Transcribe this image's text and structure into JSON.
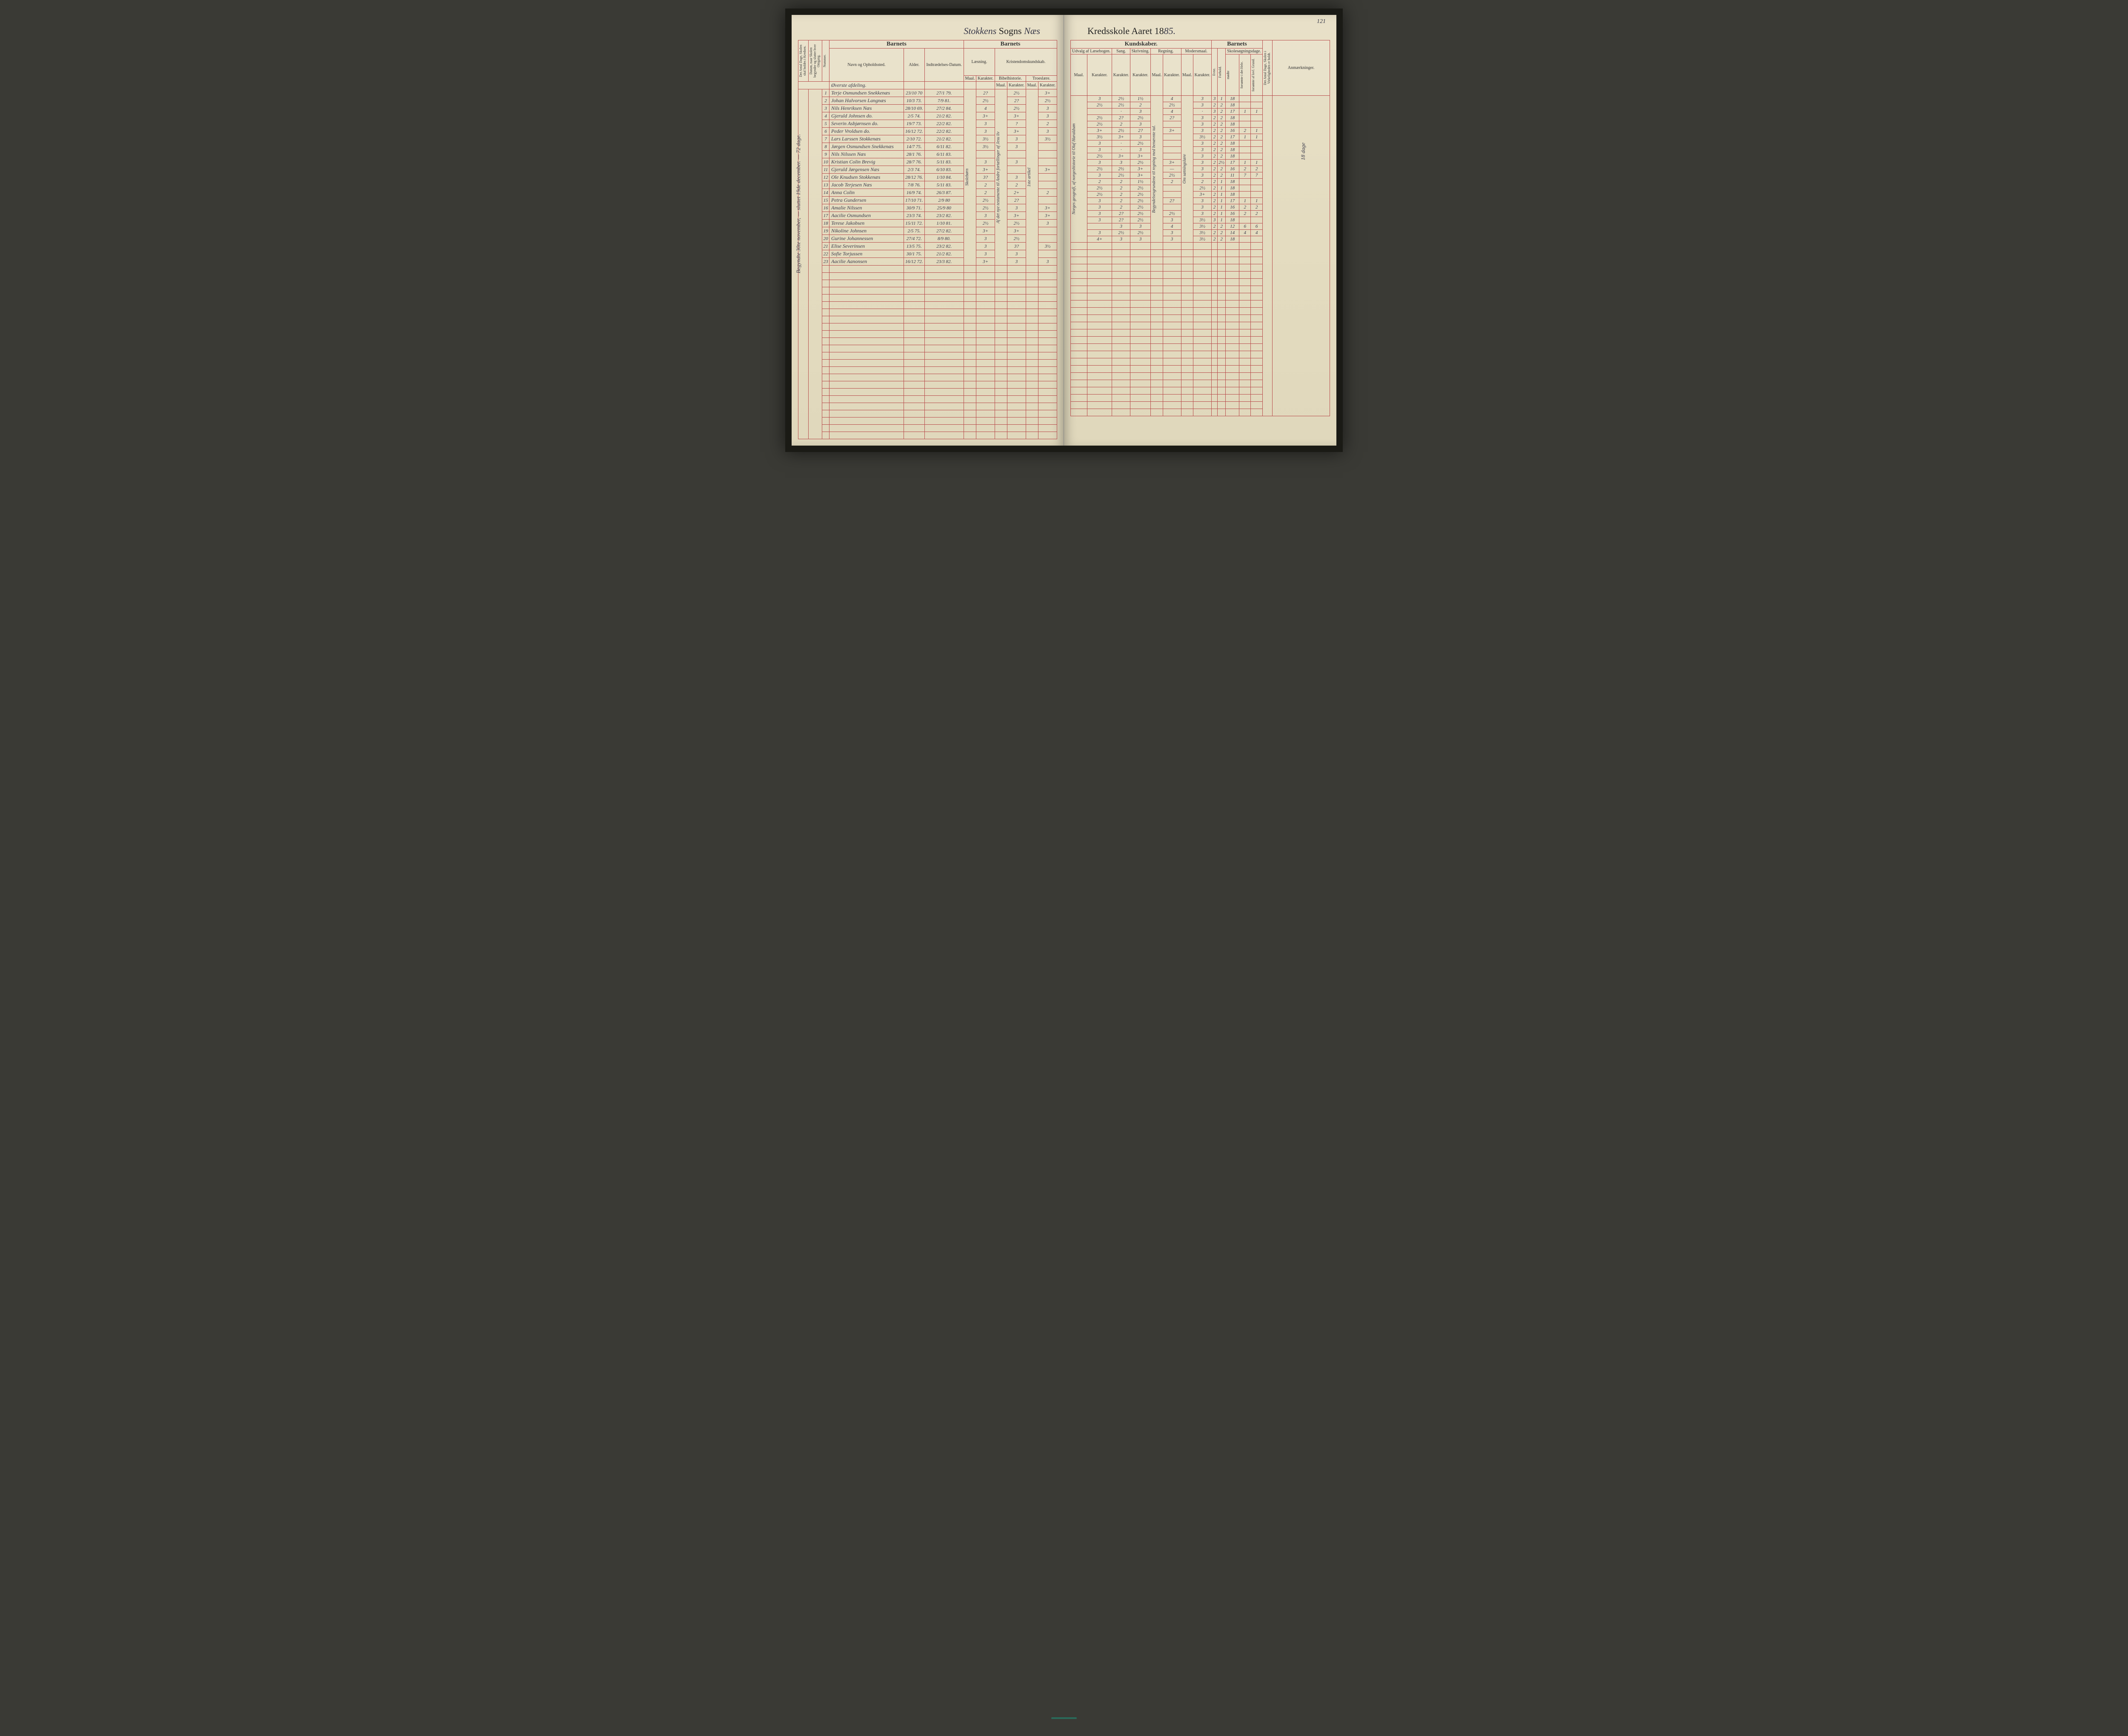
{
  "page_number": "121",
  "title_left_prefix_hand": "Stokkens",
  "title_left_print": "Sogns",
  "title_left_suffix_hand": "Næs",
  "title_right_print": "Kredsskole Aaret 18",
  "title_right_suffix_hand": "85.",
  "margin_note_left": "Begyndte 30te november, — sluttet 19de december. — 72 dage.",
  "margin_note_right": "18 dage",
  "section_heading_hand": "Øverste afdeling.",
  "headers": {
    "col1": "Det Antal Dage, Skolen skal holdes i Kredsen.",
    "col2": "Datum, naar Skolen begynder og slutter hver Omgang.",
    "nummer": "Nummer.",
    "barnets": "Barnets",
    "navn": "Navn og Opholdssted.",
    "alder": "Alder.",
    "indtr": "Indtrædelses-Datum.",
    "laesning": "Læsning.",
    "kristendom": "Kristendomskundskab.",
    "bibel": "Bibelhistorie.",
    "troes": "Troeslære.",
    "maal": "Maal.",
    "karakter": "Karakter.",
    "kundskaber": "Kundskaber.",
    "udvalg": "Udvalg af Læsebogen.",
    "sang": "Sang.",
    "skriv": "Skrivning.",
    "regning": "Regning.",
    "modersmaal": "Modersmaal.",
    "evne": "Evne.",
    "forhold": "Forhold.",
    "skolesog": "Skolesøgningsdage.",
    "modte": "mødte",
    "fors_hele": "forsømte i det Hele.",
    "fors_lovl": "forsømte af lovl. Grund.",
    "virkel": "Det Antal Dage, Skolen i Virkeligheden er holdt.",
    "anm": "Anmærkninger."
  },
  "maal_vertical_left": {
    "laesning": "Skolebørn",
    "bibel": "Af det nye testamente til Andre fortællinger af Jesu liv",
    "troes": "1ste artikel"
  },
  "maal_vertical_right": {
    "udvalg": "Norges geografi, af norgeshistorie til Olaf Haraldsøn",
    "regning": "Begyndelsesgrundene til regning med benævnte tal.",
    "modersmaal": "Om sætningslære"
  },
  "rows": [
    {
      "n": "1",
      "navn": "Terje Osmundsen Snekkenæs",
      "alder": "23/10 70",
      "indtr": "27/1 79.",
      "l_k": "2?",
      "b_k": "2½",
      "t_k": "3+",
      "u_k": "3",
      "sa": "2½",
      "sk": "1½",
      "re_k": "4",
      "mo_k": "3",
      "ev": "3",
      "fo": "1",
      "mo": "18",
      "fh": "",
      "fl": ""
    },
    {
      "n": "2",
      "navn": "Johan Halvorsen Langnæs",
      "alder": "10/3 73.",
      "indtr": "7/9 81.",
      "l_k": "2½",
      "b_k": "2?",
      "t_k": "2½",
      "u_k": "2½",
      "sa": "2½",
      "sk": "2",
      "re_k": "2½",
      "mo_k": "3",
      "ev": "2",
      "fo": "2",
      "mo": "18",
      "fh": "",
      "fl": ""
    },
    {
      "n": "3",
      "navn": "Nils Henriksen Næs",
      "alder": "28/10 69.",
      "indtr": "27/2 84.",
      "l_k": "4",
      "b_k": "2½",
      "t_k": "3",
      "u_k": "",
      "sa": "·",
      "sk": "3",
      "re_k": "4",
      "mo_k": "·",
      "ev": "3",
      "fo": "2",
      "mo": "17",
      "fh": "1",
      "fl": "1"
    },
    {
      "n": "4",
      "navn": "Gjeruld Johnsen do.",
      "alder": "2/5 74.",
      "indtr": "21/2 82.",
      "l_k": "3+",
      "b_k": "3+",
      "t_k": "3",
      "u_k": "2½",
      "sa": "2?",
      "sk": "2½",
      "re_k": "2?",
      "mo_k": "3",
      "ev": "2",
      "fo": "2",
      "mo": "18",
      "fh": "",
      "fl": ""
    },
    {
      "n": "5",
      "navn": "Severin Asbjørnsen do.",
      "alder": "19/7 73.",
      "indtr": "22/2 82.",
      "l_k": "3",
      "b_k": "?",
      "t_k": "2",
      "u_k": "2½",
      "sa": "2",
      "sk": "3",
      "re_k": "",
      "mo_k": "3",
      "ev": "2",
      "fo": "2",
      "mo": "18",
      "fh": "",
      "fl": ""
    },
    {
      "n": "6",
      "navn": "Peder Vroldsen do.",
      "alder": "16/12 72.",
      "indtr": "22/2 82.",
      "l_k": "3",
      "b_k": "3+",
      "t_k": "3",
      "u_k": "3+",
      "sa": "2½",
      "sk": "2?",
      "re_k": "3+",
      "mo_k": "3",
      "ev": "2",
      "fo": "2",
      "mo": "16",
      "fh": "2",
      "fl": "1"
    },
    {
      "n": "7",
      "navn": "Lars Larssen Stokkenæs",
      "alder": "2/10 72.",
      "indtr": "21/2 82.",
      "l_k": "3½",
      "b_k": "3",
      "t_k": "3½",
      "u_k": "3½",
      "sa": "3+",
      "sk": "3",
      "re_k": "",
      "mo_k": "3½",
      "ev": "2",
      "fo": "2",
      "mo": "17",
      "fh": "1",
      "fl": "1"
    },
    {
      "n": "8",
      "navn": "Jørgen Osmundsen Snekkenæs",
      "alder": "14/7 75.",
      "indtr": "6/11 82.",
      "l_k": "3½",
      "b_k": "3",
      "t_k": "",
      "u_k": "3",
      "sa": "·",
      "sk": "2½",
      "re_k": "",
      "mo_k": "3",
      "ev": "2",
      "fo": "2",
      "mo": "18",
      "fh": "",
      "fl": ""
    },
    {
      "n": "9",
      "navn": "Nils Nilssen Næs",
      "alder": "28/1 76.",
      "indtr": "6/11 83.",
      "l_k": "",
      "b_k": "",
      "t_k": "",
      "u_k": "3",
      "sa": "·",
      "sk": "3",
      "re_k": "",
      "mo_k": "3",
      "ev": "2",
      "fo": "2",
      "mo": "18",
      "fh": "",
      "fl": ""
    },
    {
      "n": "10",
      "navn": "Kristian Colin Brevig",
      "alder": "28/7 76.",
      "indtr": "5/11 83.",
      "l_k": "3",
      "b_k": "3",
      "t_k": "",
      "u_k": "2½",
      "sa": "3+",
      "sk": "3+",
      "re_k": "",
      "mo_k": "3",
      "ev": "2",
      "fo": "2",
      "mo": "18",
      "fh": "",
      "fl": ""
    },
    {
      "n": "11",
      "navn": "Gjeruld Jørgensen Næs",
      "alder": "2/3 74.",
      "indtr": "6/10 83.",
      "l_k": "3+",
      "b_k": "",
      "t_k": "3+",
      "u_k": "3",
      "sa": "3",
      "sk": "2½",
      "re_k": "3+",
      "mo_k": "3",
      "ev": "2",
      "fo": "2½",
      "mo": "17",
      "fh": "1",
      "fl": "1"
    },
    {
      "n": "12",
      "navn": "Ole Knudsen Stokkenæs",
      "alder": "28/12 76.",
      "indtr": "1/10 84.",
      "l_k": "3?",
      "b_k": "3",
      "t_k": "",
      "u_k": "2½",
      "sa": "2½",
      "sk": "3+",
      "re_k": "—",
      "mo_k": "3",
      "ev": "2",
      "fo": "2",
      "mo": "16",
      "fh": "2",
      "fl": "2"
    },
    {
      "n": "13",
      "navn": "Jacob Terjesen Næs",
      "alder": "7/8 76.",
      "indtr": "5/11 83.",
      "l_k": "2",
      "b_k": "2",
      "t_k": "",
      "u_k": "3",
      "sa": "2½",
      "sk": "3+",
      "re_k": "2½",
      "mo_k": "3",
      "ev": "2",
      "fo": "2",
      "mo": "11",
      "fh": "7",
      "fl": "7"
    },
    {
      "n": "14",
      "navn": "Anna Colin",
      "alder": "16/9 74.",
      "indtr": "26/3 87.",
      "l_k": "2",
      "b_k": "2+",
      "t_k": "2",
      "u_k": "2",
      "sa": "2",
      "sk": "1½",
      "re_k": "2",
      "mo_k": "2",
      "ev": "2",
      "fo": "1",
      "mo": "18",
      "fh": "",
      "fl": ""
    },
    {
      "n": "15",
      "navn": "Petra Gundersen",
      "alder": "17/10 71.",
      "indtr": "2/9 80",
      "l_k": "2½",
      "b_k": "2?",
      "t_k": "",
      "u_k": "2½",
      "sa": "2",
      "sk": "2½",
      "re_k": "",
      "mo_k": "2½",
      "ev": "2",
      "fo": "1",
      "mo": "18",
      "fh": "",
      "fl": ""
    },
    {
      "n": "16",
      "navn": "Amalie Nilssen",
      "alder": "30/9 71.",
      "indtr": "25/9 80",
      "l_k": "2½",
      "b_k": "3",
      "t_k": "3+",
      "u_k": "2½",
      "sa": "2",
      "sk": "2½",
      "re_k": "",
      "mo_k": "3+",
      "ev": "2",
      "fo": "1",
      "mo": "18",
      "fh": "",
      "fl": ""
    },
    {
      "n": "17",
      "navn": "Aacilie Osmundsen",
      "alder": "23/3 74.",
      "indtr": "23/2 82.",
      "l_k": "3",
      "b_k": "3+",
      "t_k": "3+",
      "u_k": "3",
      "sa": "2",
      "sk": "2½",
      "re_k": "2?",
      "mo_k": "3",
      "ev": "2",
      "fo": "1",
      "mo": "17",
      "fh": "1",
      "fl": "1"
    },
    {
      "n": "18",
      "navn": "Terese Jakobsen",
      "alder": "15/11 72.",
      "indtr": "1/10 81.",
      "l_k": "2½",
      "b_k": "2½",
      "t_k": "3",
      "u_k": "3",
      "sa": "2",
      "sk": "2½",
      "re_k": "",
      "mo_k": "3",
      "ev": "2",
      "fo": "1",
      "mo": "16",
      "fh": "2",
      "fl": "2"
    },
    {
      "n": "19",
      "navn": "Nikoline Johnsen",
      "alder": "2/5 75.",
      "indtr": "27/2 82.",
      "l_k": "3+",
      "b_k": "3+",
      "t_k": "",
      "u_k": "3",
      "sa": "2?",
      "sk": "2½",
      "re_k": "2½",
      "mo_k": "3",
      "ev": "2",
      "fo": "1",
      "mo": "16",
      "fh": "2",
      "fl": "2"
    },
    {
      "n": "20",
      "navn": "Gurine Johannessen",
      "alder": "27/4 72.",
      "indtr": "8/9 80.",
      "l_k": "3",
      "b_k": "2½",
      "t_k": "",
      "u_k": "3",
      "sa": "2?",
      "sk": "2½",
      "re_k": "3",
      "mo_k": "3½",
      "ev": "3",
      "fo": "1",
      "mo": "18",
      "fh": "",
      "fl": ""
    },
    {
      "n": "21",
      "navn": "Elise Severinsen",
      "alder": "13/5 75.",
      "indtr": "23/2 82.",
      "l_k": "3",
      "b_k": "3?",
      "t_k": "3½",
      "u_k": "",
      "sa": "3",
      "sk": "3",
      "re_k": "4",
      "mo_k": "3½",
      "ev": "2",
      "fo": "2",
      "mo": "12",
      "fh": "6",
      "fl": "6"
    },
    {
      "n": "22",
      "navn": "Sofie Torjussen",
      "alder": "30/1 75.",
      "indtr": "21/2 82.",
      "l_k": "3",
      "b_k": "3",
      "t_k": "",
      "u_k": "3",
      "sa": "2½",
      "sk": "2½",
      "re_k": "3",
      "mo_k": "3½",
      "ev": "2",
      "fo": "2",
      "mo": "14",
      "fh": "4",
      "fl": "4"
    },
    {
      "n": "23",
      "navn": "Aacilie Aanonsen",
      "alder": "16/12 72.",
      "indtr": "23/3 82.",
      "l_k": "3+",
      "b_k": "3",
      "t_k": "3",
      "u_k": "4+",
      "sa": "3",
      "sk": "3",
      "re_k": "3",
      "mo_k": "3½",
      "ev": "2",
      "fo": "2",
      "mo": "18",
      "fh": "",
      "fl": ""
    }
  ],
  "colors": {
    "rule": "#b84c4c",
    "paper": "#e4dcc0",
    "ink": "#3a3a4a"
  }
}
